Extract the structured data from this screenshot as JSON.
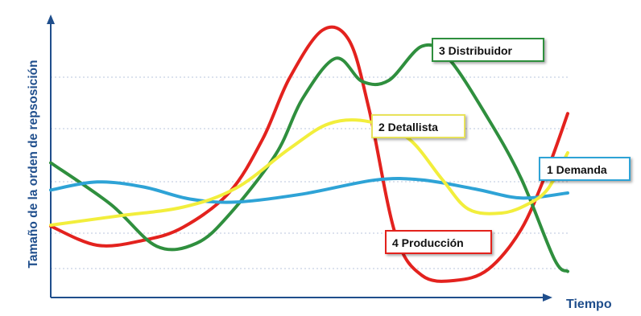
{
  "chart_data": {
    "type": "line",
    "title": "",
    "xlabel": "Tiempo",
    "ylabel": "Tamaño de la orden de repsosición",
    "grid": "horizontal dotted",
    "x_ticks": [],
    "y_ticks": [],
    "legend_placement": "labels-on-lines",
    "colors": {
      "axis": "#1f4e8c",
      "grid": "#b8c4dc",
      "demanda": "#2ea3d6",
      "detallista": "#f2ee3c",
      "distribuidor": "#2f8f3e",
      "produccion": "#e3221e"
    },
    "series": [
      {
        "name": "1 Demanda",
        "color": "#2ea3d6",
        "points": [
          [
            0,
            8.9
          ],
          [
            0.7,
            9.7
          ],
          [
            1.4,
            9.2
          ],
          [
            2.1,
            8.0
          ],
          [
            2.8,
            7.7
          ],
          [
            3.8,
            8.5
          ],
          [
            4.9,
            9.9
          ],
          [
            5.6,
            9.9
          ],
          [
            6.4,
            9.0
          ],
          [
            7.1,
            8.1
          ],
          [
            7.8,
            8.6
          ]
        ]
      },
      {
        "name": "2 Detallista",
        "color": "#f2ee3c",
        "points": [
          [
            0,
            5.4
          ],
          [
            1.0,
            6.3
          ],
          [
            2.0,
            7.2
          ],
          [
            2.8,
            9.1
          ],
          [
            3.6,
            13.0
          ],
          [
            4.2,
            15.5
          ],
          [
            4.8,
            15.7
          ],
          [
            5.4,
            14.0
          ],
          [
            5.9,
            10.0
          ],
          [
            6.3,
            7.0
          ],
          [
            6.8,
            6.6
          ],
          [
            7.2,
            7.5
          ],
          [
            7.5,
            9.0
          ],
          [
            7.8,
            12.6
          ]
        ]
      },
      {
        "name": "3 Distribuidor",
        "color": "#2f8f3e",
        "points": [
          [
            0,
            11.6
          ],
          [
            0.9,
            7.5
          ],
          [
            1.6,
            3.3
          ],
          [
            2.2,
            3.6
          ],
          [
            2.7,
            6.5
          ],
          [
            3.4,
            12.5
          ],
          [
            3.8,
            18.0
          ],
          [
            4.3,
            22.0
          ],
          [
            4.7,
            19.7
          ],
          [
            5.1,
            19.8
          ],
          [
            5.6,
            23.2
          ],
          [
            6.0,
            22.0
          ],
          [
            6.6,
            16.0
          ],
          [
            7.1,
            10.0
          ],
          [
            7.6,
            2.0
          ],
          [
            7.8,
            0.8
          ]
        ]
      },
      {
        "name": "4 Producción",
        "color": "#e3221e",
        "points": [
          [
            0,
            5.3
          ],
          [
            0.7,
            3.4
          ],
          [
            1.4,
            3.9
          ],
          [
            2.0,
            5.2
          ],
          [
            2.7,
            8.7
          ],
          [
            3.2,
            14.0
          ],
          [
            3.6,
            20.0
          ],
          [
            4.1,
            24.8
          ],
          [
            4.5,
            23.8
          ],
          [
            4.8,
            17.0
          ],
          [
            5.2,
            4.5
          ],
          [
            5.6,
            0.4
          ],
          [
            6.1,
            -0.1
          ],
          [
            6.6,
            1.0
          ],
          [
            7.1,
            5.0
          ],
          [
            7.5,
            11.0
          ],
          [
            7.8,
            16.5
          ]
        ]
      }
    ],
    "line_labels": [
      {
        "text": "3 Distribuidor"
      },
      {
        "text": "2 Detallista"
      },
      {
        "text": "1 Demanda"
      },
      {
        "text": "4 Producción"
      }
    ]
  }
}
